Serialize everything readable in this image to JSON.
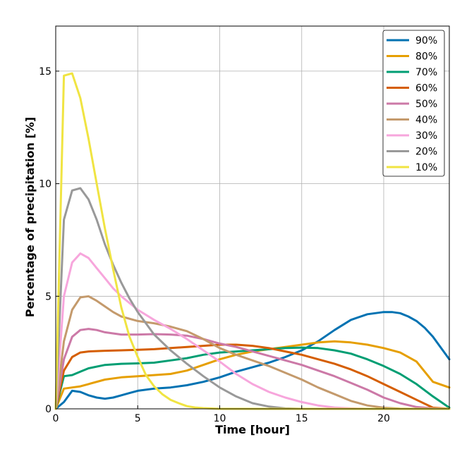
{
  "chart_data": {
    "type": "line",
    "xlabel": "Time [hour]",
    "ylabel": "Percentage of precipitation [%]",
    "xlim": [
      0,
      24
    ],
    "ylim": [
      0,
      17
    ],
    "xticks": [
      0,
      5,
      10,
      15,
      20
    ],
    "yticks": [
      0,
      5,
      10,
      15
    ],
    "grid": true,
    "legend_position": "top-right",
    "series": [
      {
        "name": "90%",
        "color": "#0072b2",
        "x": [
          0,
          0.5,
          1,
          1.5,
          2,
          2.5,
          3,
          3.5,
          4,
          4.5,
          5,
          6,
          7,
          8,
          9,
          10,
          11,
          12,
          13,
          14,
          15,
          16,
          17,
          18,
          19,
          20,
          20.5,
          21,
          21.5,
          22,
          22.5,
          23,
          23.5,
          24
        ],
        "y": [
          0,
          0.3,
          0.8,
          0.75,
          0.6,
          0.5,
          0.45,
          0.5,
          0.6,
          0.7,
          0.8,
          0.9,
          0.95,
          1.05,
          1.2,
          1.4,
          1.65,
          1.85,
          2.05,
          2.3,
          2.6,
          3.0,
          3.5,
          3.95,
          4.2,
          4.3,
          4.3,
          4.25,
          4.1,
          3.9,
          3.6,
          3.2,
          2.7,
          2.2
        ]
      },
      {
        "name": "80%",
        "color": "#e69f00",
        "x": [
          0,
          0.5,
          1,
          1.5,
          2,
          3,
          4,
          5,
          6,
          7,
          8,
          9,
          10,
          11,
          12,
          13,
          14,
          15,
          16,
          17,
          18,
          19,
          20,
          21,
          22,
          23,
          24
        ],
        "y": [
          0,
          0.9,
          0.95,
          1.0,
          1.1,
          1.3,
          1.4,
          1.45,
          1.5,
          1.55,
          1.7,
          1.95,
          2.2,
          2.4,
          2.55,
          2.65,
          2.75,
          2.85,
          2.95,
          3.0,
          2.95,
          2.85,
          2.7,
          2.5,
          2.1,
          1.2,
          0.95
        ]
      },
      {
        "name": "70%",
        "color": "#009e73",
        "x": [
          0,
          0.5,
          1,
          1.5,
          2,
          3,
          4,
          5,
          6,
          7,
          8,
          9,
          10,
          11,
          12,
          13,
          14,
          15,
          16,
          17,
          18,
          19,
          20,
          21,
          22,
          23,
          24
        ],
        "y": [
          0,
          1.45,
          1.5,
          1.65,
          1.8,
          1.95,
          2.0,
          2.02,
          2.05,
          2.15,
          2.25,
          2.4,
          2.5,
          2.55,
          2.6,
          2.65,
          2.7,
          2.72,
          2.7,
          2.6,
          2.45,
          2.2,
          1.9,
          1.55,
          1.1,
          0.55,
          0.05
        ]
      },
      {
        "name": "60%",
        "color": "#d55e00",
        "x": [
          0,
          0.5,
          1,
          1.5,
          2,
          3,
          4,
          5,
          6,
          7,
          8,
          9,
          10,
          11,
          12,
          13,
          14,
          15,
          16,
          17,
          18,
          19,
          20,
          21,
          22,
          23,
          24
        ],
        "y": [
          0,
          1.7,
          2.3,
          2.5,
          2.55,
          2.58,
          2.6,
          2.62,
          2.65,
          2.7,
          2.75,
          2.8,
          2.85,
          2.85,
          2.8,
          2.7,
          2.55,
          2.4,
          2.2,
          2.0,
          1.75,
          1.45,
          1.1,
          0.75,
          0.4,
          0.05,
          0
        ]
      },
      {
        "name": "50%",
        "color": "#cc79a7",
        "x": [
          0,
          0.5,
          1,
          1.5,
          2,
          2.5,
          3,
          3.5,
          4,
          5,
          6,
          7,
          8,
          9,
          10,
          11,
          12,
          13,
          14,
          15,
          16,
          17,
          18,
          19,
          20,
          21,
          22,
          23,
          24
        ],
        "y": [
          0,
          2.2,
          3.2,
          3.5,
          3.55,
          3.5,
          3.4,
          3.35,
          3.3,
          3.3,
          3.32,
          3.3,
          3.25,
          3.1,
          2.9,
          2.75,
          2.55,
          2.35,
          2.15,
          1.95,
          1.7,
          1.45,
          1.15,
          0.85,
          0.5,
          0.25,
          0.08,
          0.02,
          0
        ]
      },
      {
        "name": "40%",
        "color": "#c49a6c",
        "x": [
          0,
          0.5,
          1,
          1.5,
          2,
          2.5,
          3,
          3.5,
          4,
          5,
          6,
          7,
          8,
          9,
          10,
          11,
          12,
          13,
          14,
          15,
          16,
          17,
          18,
          19,
          20,
          21,
          22,
          23,
          24
        ],
        "y": [
          0,
          3.0,
          4.4,
          4.95,
          5.0,
          4.8,
          4.55,
          4.3,
          4.1,
          3.9,
          3.8,
          3.65,
          3.45,
          3.1,
          2.7,
          2.4,
          2.15,
          1.9,
          1.6,
          1.3,
          0.95,
          0.65,
          0.35,
          0.15,
          0.05,
          0.01,
          0,
          0,
          0
        ]
      },
      {
        "name": "30%",
        "color": "#f7a6dc",
        "x": [
          0,
          0.5,
          1,
          1.5,
          2,
          2.5,
          3,
          3.5,
          4,
          5,
          6,
          7,
          8,
          9,
          10,
          11,
          12,
          13,
          14,
          15,
          16,
          17,
          18,
          19,
          20,
          21,
          22,
          23,
          24
        ],
        "y": [
          0,
          5.0,
          6.5,
          6.9,
          6.7,
          6.25,
          5.8,
          5.35,
          5.0,
          4.4,
          3.95,
          3.55,
          3.1,
          2.6,
          2.1,
          1.55,
          1.1,
          0.75,
          0.5,
          0.3,
          0.15,
          0.06,
          0.02,
          0,
          0,
          0,
          0,
          0,
          0
        ]
      },
      {
        "name": "20%",
        "color": "#999999",
        "x": [
          0,
          0.5,
          1,
          1.5,
          2,
          2.5,
          3,
          3.5,
          4,
          4.5,
          5,
          6,
          7,
          8,
          9,
          10,
          11,
          12,
          13,
          14,
          15,
          16,
          17,
          18,
          19,
          20,
          21,
          22,
          23,
          24
        ],
        "y": [
          0,
          8.4,
          9.7,
          9.8,
          9.3,
          8.4,
          7.3,
          6.4,
          5.6,
          4.9,
          4.3,
          3.3,
          2.6,
          2.0,
          1.45,
          0.95,
          0.55,
          0.25,
          0.1,
          0.02,
          0,
          0,
          0,
          0,
          0,
          0,
          0,
          0,
          0,
          0
        ]
      },
      {
        "name": "10%",
        "color": "#f0e442",
        "x": [
          0,
          0.5,
          1,
          1.5,
          2,
          2.5,
          3,
          3.5,
          4,
          4.5,
          5,
          5.5,
          6,
          6.5,
          7,
          7.5,
          8,
          8.5,
          9,
          10,
          11,
          12,
          13,
          14,
          15,
          16,
          17,
          18,
          19,
          20,
          21,
          22,
          23,
          24
        ],
        "y": [
          0,
          14.8,
          14.9,
          13.8,
          12.0,
          10.0,
          8.0,
          6.2,
          4.5,
          3.2,
          2.3,
          1.5,
          1.0,
          0.65,
          0.4,
          0.25,
          0.12,
          0.06,
          0.03,
          0,
          0,
          0,
          0,
          0,
          0,
          0,
          0,
          0,
          0,
          0,
          0,
          0,
          0,
          0
        ]
      }
    ]
  }
}
